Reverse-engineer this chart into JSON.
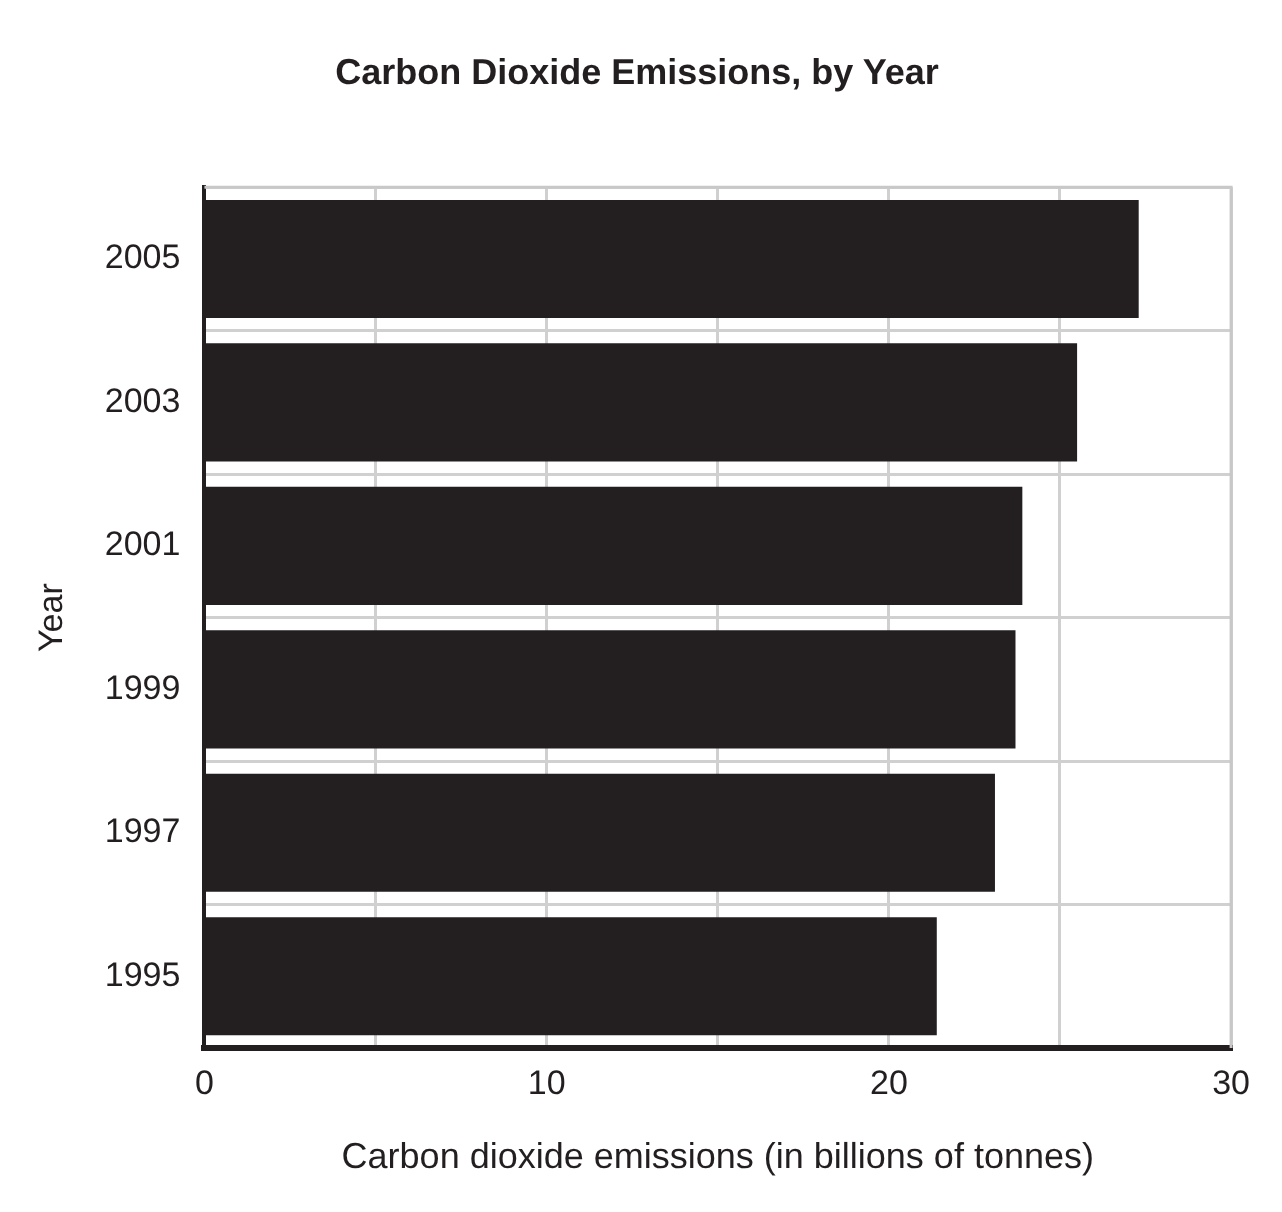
{
  "chart_data": {
    "type": "bar",
    "orientation": "horizontal",
    "title": "Carbon Dioxide Emissions, by Year",
    "xlabel": "Carbon dioxide emissions (in billions of tonnes)",
    "ylabel": "Year",
    "categories": [
      "2005",
      "2003",
      "2001",
      "1999",
      "1997",
      "1995"
    ],
    "values": [
      27.3,
      25.5,
      23.9,
      23.7,
      23.1,
      21.4
    ],
    "color": "#231f20",
    "xlim": [
      0,
      30
    ],
    "xticks": [
      0,
      {
        "value": 5,
        "label": null
      },
      10,
      {
        "value": 15,
        "label": null
      },
      20,
      {
        "value": 25,
        "label": null
      },
      30
    ],
    "grid": true,
    "legend": false
  }
}
